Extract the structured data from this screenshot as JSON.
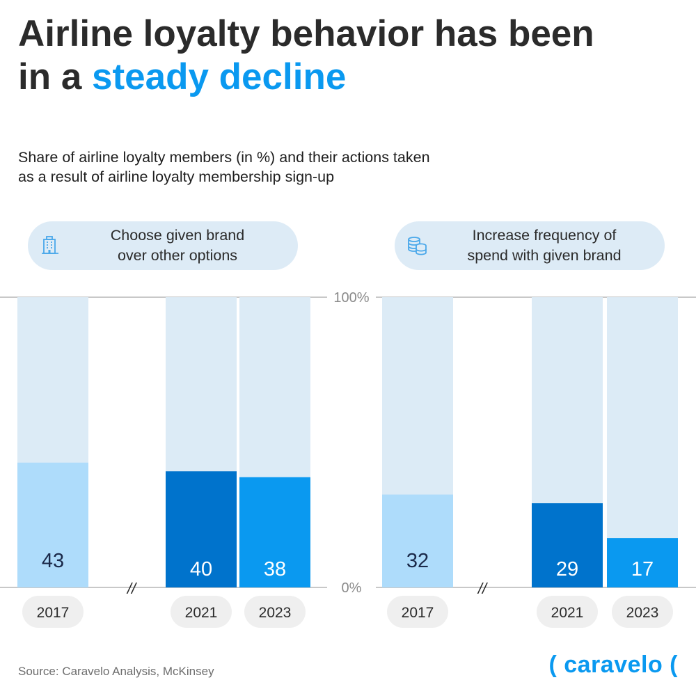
{
  "title": {
    "line1": "Airline loyalty behavior has been",
    "line2_prefix": "in a ",
    "line2_accent": "steady decline"
  },
  "subtitle": {
    "line1": "Share of airline loyalty members (in %) and their actions taken",
    "line2": "as a result of airline loyalty membership sign-up"
  },
  "panels": [
    {
      "label_line1": "Choose given brand",
      "label_line2": "over other options",
      "icon": "building-icon"
    },
    {
      "label_line1": "Increase frequency of",
      "label_line2": "spend with given brand",
      "icon": "coins-stack-icon"
    }
  ],
  "chart_data": {
    "type": "bar",
    "ylim": [
      0,
      100
    ],
    "y_tick_labels": [
      "100%",
      "0%"
    ],
    "axis_break_symbol": "//",
    "categories": [
      "2017",
      "2021",
      "2023"
    ],
    "series": [
      {
        "values": [
          43,
          40,
          38
        ]
      },
      {
        "values": [
          32,
          29,
          17
        ]
      }
    ],
    "colors": {
      "2017": "#aedcfb",
      "2021": "#0073cc",
      "2023": "#0a99f0",
      "background_bar": "#dcebf6"
    }
  },
  "footer": {
    "source": "Source: Caravelo Analysis, McKinsey",
    "brand": "( caravelo ("
  }
}
